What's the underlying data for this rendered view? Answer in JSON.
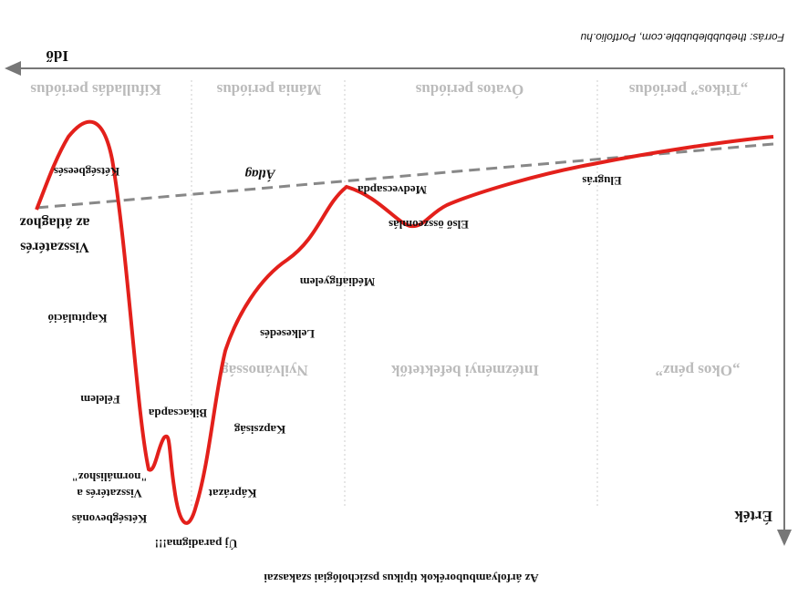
{
  "title": "Az árfolyambuborékok tipikus pszichológiai szakaszai",
  "source": "Forrás: thebubblebubble.com, Portfolio.hu",
  "axes": {
    "y": "Érték",
    "x": "Idő"
  },
  "phases": [
    "„Titkos” periódus",
    "Óvatos periódus",
    "Mánia periódus",
    "Kifulladás periódus"
  ],
  "participants": [
    "„Okos pénz”",
    "Intézményi befektetők",
    "Nyilvánosság"
  ],
  "mean_label": "Átlag",
  "curve_labels": [
    "Elugrás",
    "Első összeomlás",
    "Medvecsapda",
    "Médiafigyelem",
    "Lelkesedés",
    "Kapzsiság",
    "Bikacsapda",
    "Káprázat",
    "Új paradigma!!!",
    "Kétségbevonás",
    "Visszatérés a",
    "\"normálishoz\"",
    "Félelem",
    "Kapituláció",
    "Visszatérés",
    "az átlaghoz",
    "Kétségbeesés"
  ]
}
